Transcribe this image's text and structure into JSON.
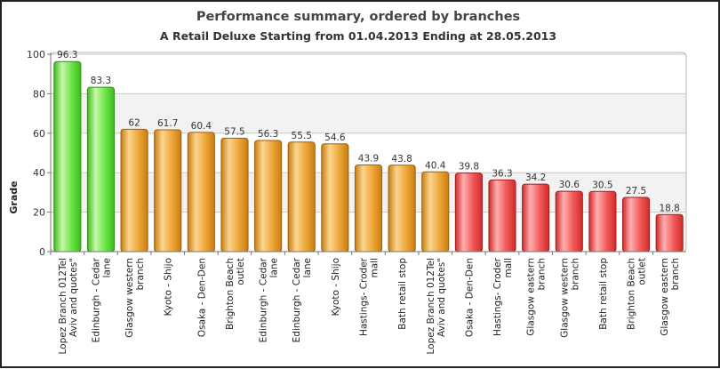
{
  "chart_data": {
    "type": "bar",
    "title": "Performance summary, ordered by branches",
    "subtitle": "A Retail Deluxe  Starting from 01.04.2013 Ending at 28.05.2013",
    "xlabel": "",
    "ylabel": "Grade",
    "ylim": [
      0,
      100
    ],
    "yticks": [
      0,
      20,
      40,
      60,
      80,
      100
    ],
    "grid": true,
    "categories": [
      [
        "Lopez Branch 012Tel",
        "Aviv and quotes\""
      ],
      [
        "Edinburgh - Cedar",
        "lane"
      ],
      [
        "Glasgow western",
        "branch"
      ],
      [
        "Kyoto - Shijo"
      ],
      [
        "Osaka - Den-Den"
      ],
      [
        "Brighton Beach",
        "outlet"
      ],
      [
        "Edinburgh - Cedar",
        "lane"
      ],
      [
        "Edinburgh - Cedar",
        "lane"
      ],
      [
        "Kyoto - Shijo"
      ],
      [
        "Hastings- Croder",
        "mall"
      ],
      [
        "Bath retail stop"
      ],
      [
        "Lopez Branch 012Tel",
        "Aviv and quotes\""
      ],
      [
        "Osaka - Den-Den"
      ],
      [
        "Hastings- Croder",
        "mall"
      ],
      [
        "Glasgow eastern",
        "branch"
      ],
      [
        "Glasgow western",
        "branch"
      ],
      [
        "Bath retail stop"
      ],
      [
        "Brighton Beach",
        "outlet"
      ],
      [
        "Glasgow eastern",
        "branch"
      ]
    ],
    "values": [
      96.3,
      83.3,
      62,
      61.7,
      60.4,
      57.5,
      56.3,
      55.5,
      54.6,
      43.9,
      43.8,
      40.4,
      39.8,
      36.3,
      34.2,
      30.6,
      30.5,
      27.5,
      18.8
    ],
    "value_labels": [
      "96.3",
      "83.3",
      "62",
      "61.7",
      "60.4",
      "57.5",
      "56.3",
      "55.5",
      "54.6",
      "43.9",
      "43.8",
      "40.4",
      "39.8",
      "36.3",
      "34.2",
      "30.6",
      "30.5",
      "27.5",
      "18.8"
    ],
    "bar_colors": [
      "green",
      "green",
      "orange",
      "orange",
      "orange",
      "orange",
      "orange",
      "orange",
      "orange",
      "orange",
      "orange",
      "orange",
      "red",
      "red",
      "red",
      "red",
      "red",
      "red",
      "red"
    ],
    "palette": {
      "green": {
        "light": "#c8f7a8",
        "mid": "#6ee64a",
        "dark": "#3dbb1e",
        "stroke": "#2f8f16"
      },
      "orange": {
        "light": "#fbd590",
        "mid": "#eea73a",
        "dark": "#c97d12",
        "stroke": "#9a5f0d"
      },
      "red": {
        "light": "#ffb0b0",
        "mid": "#f25a5a",
        "dark": "#cf2a2a",
        "stroke": "#a01f1f"
      }
    },
    "band_color": "#f2f2f2",
    "grid_color": "#c8c8c8"
  }
}
